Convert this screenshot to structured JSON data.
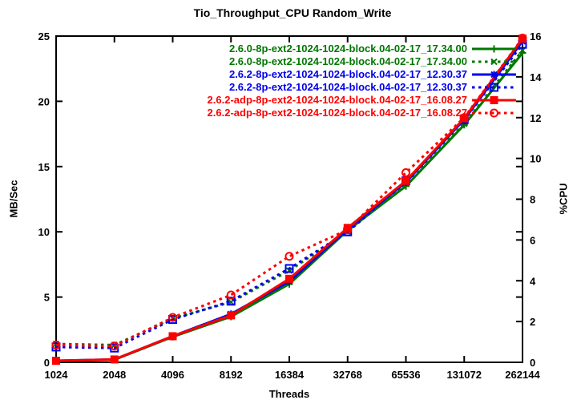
{
  "title": "Tio_Throughput_CPU Random_Write",
  "axes": {
    "x": {
      "label": "Threads",
      "tick_labels": [
        "1024",
        "2048",
        "4096",
        "8192",
        "16384",
        "32768",
        "65536",
        "131072",
        "262144"
      ]
    },
    "y_left": {
      "label": "MB/Sec",
      "min": 0,
      "max": 25,
      "tick_labels": [
        "0",
        "5",
        "10",
        "15",
        "20",
        "25"
      ],
      "tick_values": [
        0,
        5,
        10,
        15,
        20,
        25
      ]
    },
    "y_right": {
      "label": "%CPU",
      "min": 0,
      "max": 16,
      "tick_labels": [
        "0",
        "2",
        "4",
        "6",
        "8",
        "10",
        "12",
        "14",
        "16"
      ],
      "tick_values": [
        0,
        2,
        4,
        6,
        8,
        10,
        12,
        14,
        16
      ]
    }
  },
  "colors": {
    "green": "#007700",
    "blue": "#0000ee",
    "red": "#ff0000",
    "frame": "#000000",
    "background": "#ffffff"
  },
  "chart_data": {
    "type": "line",
    "x": [
      1024,
      2048,
      4096,
      8192,
      16384,
      32768,
      65536,
      131072,
      262144
    ],
    "x_scale": "log2",
    "grid": false,
    "legend_position": "top-right-inside",
    "series": [
      {
        "name": "2.6.0-8p-ext2-1024-1024-block.04-02-17_17.34.00",
        "axis": "left",
        "style": "solid",
        "marker": "plus",
        "color": "#007700",
        "values": [
          0.1,
          0.2,
          1.95,
          3.5,
          6.0,
          10.1,
          13.5,
          18.2,
          23.7
        ]
      },
      {
        "name": "2.6.0-8p-ext2-1024-1024-block.04-02-17_17.34.00",
        "axis": "right",
        "style": "dashed",
        "marker": "cross",
        "color": "#007700",
        "values": [
          0.9,
          0.85,
          2.15,
          2.95,
          4.5,
          6.4,
          8.8,
          11.7,
          15.3
        ]
      },
      {
        "name": "2.6.2-8p-ext2-1024-1024-block.04-02-17_12.30.37",
        "axis": "left",
        "style": "solid",
        "marker": "asterisk",
        "color": "#0000ee",
        "values": [
          0.12,
          0.22,
          2.0,
          3.7,
          6.2,
          10.2,
          13.8,
          18.6,
          24.6
        ]
      },
      {
        "name": "2.6.2-8p-ext2-1024-1024-block.04-02-17_12.30.37",
        "axis": "right",
        "style": "dashed",
        "marker": "square-open",
        "color": "#0000ee",
        "values": [
          0.75,
          0.7,
          2.1,
          3.0,
          4.6,
          6.4,
          8.9,
          11.9,
          15.6
        ]
      },
      {
        "name": "2.6.2-adp-8p-ext2-1024-1024-block.04-02-17_16.08.27",
        "axis": "left",
        "style": "solid",
        "marker": "square-filled",
        "color": "#ff0000",
        "values": [
          0.12,
          0.22,
          2.0,
          3.6,
          6.4,
          10.3,
          13.9,
          18.7,
          24.8
        ]
      },
      {
        "name": "2.6.2-adp-8p-ext2-1024-1024-block.04-02-17_16.08.27",
        "axis": "right",
        "style": "dashed",
        "marker": "circle-open",
        "color": "#ff0000",
        "values": [
          0.85,
          0.8,
          2.2,
          3.3,
          5.2,
          6.5,
          9.3,
          12.0,
          15.9
        ]
      }
    ]
  }
}
